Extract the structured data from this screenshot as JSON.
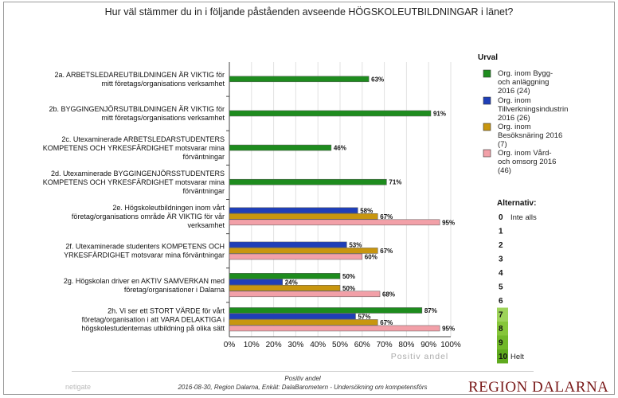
{
  "chart_data": {
    "type": "bar",
    "orientation": "horizontal",
    "title": "Hur väl stämmer du in i följande påståenden avseende HÖGSKOLEUTBILDNINGAR i länet?",
    "xlabel": "Positiv andel",
    "xlim": [
      0,
      100
    ],
    "ticks": [
      "0%",
      "10%",
      "20%",
      "30%",
      "40%",
      "50%",
      "60%",
      "70%",
      "80%",
      "90%",
      "100%"
    ],
    "grid": true,
    "legend_title": "Urval",
    "legend_position": "right",
    "categories": [
      [
        "2a. ARBETSLEDAREUTBILDNINGEN ÄR VIKTIG för",
        "mitt företags/organisations verksamhet"
      ],
      [
        "2b. BYGGINGENJÖRSUTBILDNINGEN ÄR VIKTIG för",
        "mitt företags/organisations verksamhet"
      ],
      [
        "2c. Utexaminerade ARBETSLEDARSTUDENTERS",
        "KOMPETENS OCH YRKESFÄRDIGHET motsvarar mina",
        "förväntningar"
      ],
      [
        "2d. Utexaminerade BYGGINGENJÖRSSTUDENTERS",
        "KOMPETENS OCH YRKESFÄRDIGHET motsvarar mina",
        "förväntningar"
      ],
      [
        "2e. Högskoleutbildningen inom vårt",
        "företag/organisations område ÄR VIKTIG för vår",
        "verksamhet"
      ],
      [
        "2f. Utexaminerade studenters KOMPETENS OCH",
        "YRKESFÄRDIGHET motsvarar mina förväntningar"
      ],
      [
        "2g. Högskolan driver en AKTIV SAMVERKAN med",
        "företag/organisationer i Dalarna"
      ],
      [
        "2h. Vi ser ett STORT VÄRDE för vårt",
        "företag/organisation i att VARA DELAKTIGA i",
        "högskolestudenternas utbildning på olika sätt"
      ]
    ],
    "series": [
      {
        "name": "Org. inom Bygg- och anläggning 2016 (24)",
        "legend_lines": [
          "Org. inom Bygg-",
          "och anläggning",
          "2016 (24)"
        ],
        "color": "#1e8c1e",
        "values": [
          63,
          91,
          46,
          71,
          null,
          null,
          50,
          87
        ]
      },
      {
        "name": "Org. inom Tillverkningsindustrin 2016 (26)",
        "legend_lines": [
          "Org. inom",
          "Tillverkningsindustrin",
          "2016 (26)"
        ],
        "color": "#1f3fb8",
        "values": [
          null,
          null,
          null,
          null,
          58,
          53,
          24,
          57
        ]
      },
      {
        "name": "Org. inom Besöksnäring 2016 (7)",
        "legend_lines": [
          "Org. inom",
          "Besöksnäring 2016",
          "(7)"
        ],
        "color": "#c8960f",
        "values": [
          null,
          null,
          null,
          null,
          67,
          67,
          50,
          67
        ]
      },
      {
        "name": "Org. inom Vård- och omsorg 2016 (46)",
        "legend_lines": [
          "Org. inom Vård-",
          "och omsorg 2016",
          "(46)"
        ],
        "color": "#f2a0a8",
        "values": [
          null,
          null,
          null,
          null,
          95,
          60,
          68,
          95
        ]
      }
    ],
    "alternatives": {
      "title": "Alternativ:",
      "items": [
        {
          "num": "0",
          "text": "Inte alls",
          "color": null
        },
        {
          "num": "1",
          "text": "",
          "color": null
        },
        {
          "num": "2",
          "text": "",
          "color": null
        },
        {
          "num": "3",
          "text": "",
          "color": null
        },
        {
          "num": "4",
          "text": "",
          "color": null
        },
        {
          "num": "5",
          "text": "",
          "color": null
        },
        {
          "num": "6",
          "text": "",
          "color": null
        },
        {
          "num": "7",
          "text": "",
          "color": "#9ed35a"
        },
        {
          "num": "8",
          "text": "",
          "color": "#86c63a"
        },
        {
          "num": "9",
          "text": "",
          "color": "#72b82a"
        },
        {
          "num": "10",
          "text": "Helt",
          "color": "#5faa1e"
        }
      ]
    }
  },
  "footer": {
    "line1": "Positiv andel",
    "line2": "2016-08-30, Region Dalarna, Enkät: DalaBarometern - Undersökning om kompetensförs"
  },
  "logo_left": "netigate",
  "brand": "REGION DALARNA"
}
